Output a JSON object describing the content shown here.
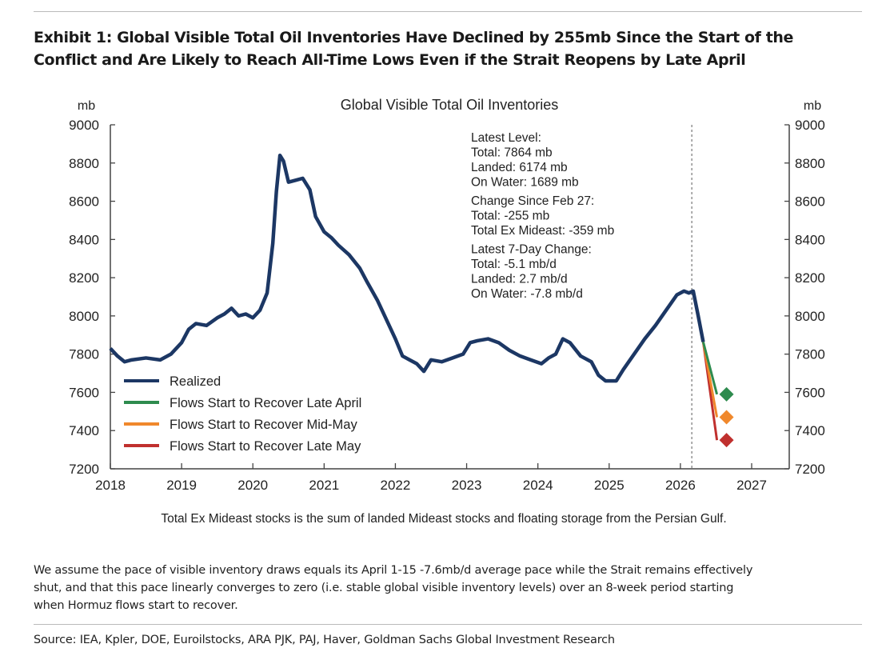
{
  "header": {
    "title_line1": "Exhibit 1: Global Visible Total Oil Inventories Have Declined by 255mb Since the Start of the",
    "title_line2": "Conflict and Are Likely to Reach All-Time Lows Even if the Strait Reopens by Late April"
  },
  "chart_data": {
    "type": "line",
    "title": "Global Visible Total Oil Inventories",
    "ylabel_left": "mb",
    "ylabel_right": "mb",
    "xlim": [
      2018,
      2027
    ],
    "ylim": [
      7200,
      9000
    ],
    "xticks": [
      "2018",
      "2019",
      "2020",
      "2021",
      "2022",
      "2023",
      "2024",
      "2025",
      "2026",
      "2027"
    ],
    "yticks": [
      "9000",
      "8800",
      "8600",
      "8400",
      "8200",
      "8000",
      "7800",
      "7600",
      "7400",
      "7200"
    ],
    "grid": false,
    "legend_position": "bottom-left",
    "conflict_start_marker_x": 2026.16,
    "series": [
      {
        "name": "Realized",
        "color": "#1c3764",
        "x": [
          2018.0,
          2018.1,
          2018.2,
          2018.3,
          2018.5,
          2018.7,
          2018.85,
          2019.0,
          2019.1,
          2019.2,
          2019.35,
          2019.5,
          2019.6,
          2019.7,
          2019.8,
          2019.9,
          2020.0,
          2020.1,
          2020.2,
          2020.28,
          2020.33,
          2020.38,
          2020.43,
          2020.5,
          2020.6,
          2020.7,
          2020.8,
          2020.88,
          2021.0,
          2021.1,
          2021.2,
          2021.35,
          2021.5,
          2021.6,
          2021.75,
          2021.9,
          2022.0,
          2022.1,
          2022.2,
          2022.3,
          2022.4,
          2022.5,
          2022.65,
          2022.8,
          2022.95,
          2023.05,
          2023.15,
          2023.3,
          2023.45,
          2023.6,
          2023.75,
          2023.9,
          2024.05,
          2024.15,
          2024.25,
          2024.35,
          2024.45,
          2024.6,
          2024.75,
          2024.85,
          2024.95,
          2025.1,
          2025.2,
          2025.35,
          2025.5,
          2025.65,
          2025.8,
          2025.95,
          2026.05,
          2026.12,
          2026.18,
          2026.25,
          2026.32
        ],
        "y": [
          7830,
          7790,
          7760,
          7770,
          7780,
          7770,
          7800,
          7860,
          7930,
          7960,
          7950,
          7990,
          8010,
          8040,
          8000,
          8010,
          7990,
          8030,
          8120,
          8380,
          8650,
          8840,
          8810,
          8700,
          8710,
          8720,
          8660,
          8520,
          8440,
          8410,
          8370,
          8320,
          8250,
          8180,
          8080,
          7960,
          7880,
          7790,
          7770,
          7750,
          7710,
          7770,
          7760,
          7780,
          7800,
          7860,
          7870,
          7880,
          7860,
          7820,
          7790,
          7770,
          7750,
          7780,
          7800,
          7880,
          7860,
          7790,
          7760,
          7690,
          7660,
          7660,
          7720,
          7800,
          7880,
          7950,
          8030,
          8110,
          8130,
          8120,
          8130,
          8000,
          7864
        ]
      },
      {
        "name": "Flows Start to Recover Late April",
        "color": "#2e8b4e",
        "x": [
          2026.32,
          2026.58
        ],
        "y": [
          7864,
          7590
        ]
      },
      {
        "name": "Flows Start to Recover Mid-May",
        "color": "#f0882c",
        "x": [
          2026.32,
          2026.58
        ],
        "y": [
          7864,
          7470
        ]
      },
      {
        "name": "Flows Start to Recover Late May",
        "color": "#c0302e",
        "x": [
          2026.32,
          2026.58
        ],
        "y": [
          7864,
          7350
        ]
      }
    ],
    "annotations": [
      "Latest Level:",
      "Total: 7864 mb",
      "Landed: 6174 mb",
      "On Water: 1689 mb",
      "Change Since Feb 27:",
      "Total: -255 mb",
      "Total Ex Mideast: -359 mb",
      "Latest 7-Day Change:",
      "Total: -5.1 mb/d",
      "Landed: 2.7 mb/d",
      "On Water: -7.8 mb/d"
    ],
    "footnote": "Total Ex Mideast stocks is the sum of landed Mideast stocks and floating storage from the Persian Gulf."
  },
  "note": {
    "line1": "We assume the pace of visible inventory draws equals its April 1-15 -7.6mb/d average pace while the Strait remains effectively",
    "line2": "shut, and that this pace linearly converges to zero (i.e. stable global visible inventory levels) over an 8-week period starting",
    "line3": "when Hormuz flows start to recover."
  },
  "source": "Source: IEA, Kpler, DOE, Euroilstocks, ARA PJK, PAJ, Haver, Goldman Sachs Global Investment Research"
}
